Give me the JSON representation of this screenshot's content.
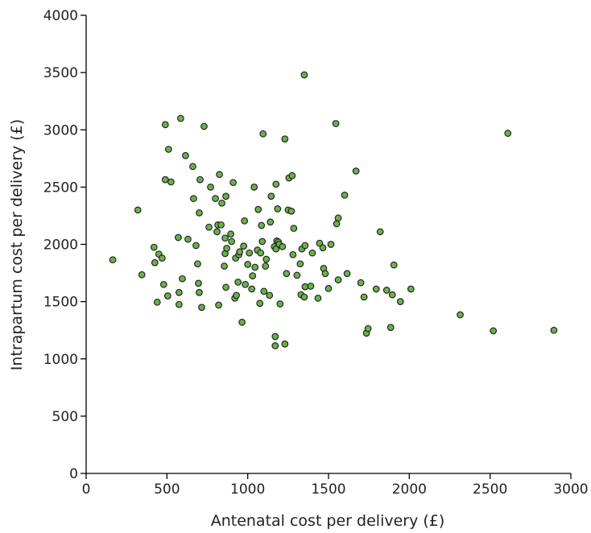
{
  "chart_data": {
    "type": "scatter",
    "title": "",
    "xlabel": "Antenatal cost per delivery (£)",
    "ylabel": "Intrapartum cost per delivery (£)",
    "xlim": [
      0,
      3000
    ],
    "ylim": [
      0,
      4000
    ],
    "xticks": [
      "0",
      "500",
      "1000",
      "1500",
      "2000",
      "2500",
      "3000"
    ],
    "yticks": [
      "0",
      "500",
      "1000",
      "1500",
      "2000",
      "2500",
      "3000",
      "3500",
      "4000"
    ],
    "grid": false,
    "legend": "none",
    "marker_color": "#6ab04c",
    "points": [
      [
        165,
        1865
      ],
      [
        320,
        2300
      ],
      [
        345,
        1735
      ],
      [
        420,
        1975
      ],
      [
        425,
        1840
      ],
      [
        440,
        1495
      ],
      [
        450,
        1915
      ],
      [
        470,
        1880
      ],
      [
        480,
        1650
      ],
      [
        490,
        3045
      ],
      [
        490,
        2565
      ],
      [
        505,
        1550
      ],
      [
        510,
        2830
      ],
      [
        525,
        2545
      ],
      [
        570,
        2060
      ],
      [
        575,
        1580
      ],
      [
        575,
        1475
      ],
      [
        585,
        3100
      ],
      [
        595,
        1700
      ],
      [
        615,
        2775
      ],
      [
        630,
        2045
      ],
      [
        660,
        2680
      ],
      [
        665,
        2400
      ],
      [
        680,
        1990
      ],
      [
        690,
        1830
      ],
      [
        695,
        1660
      ],
      [
        700,
        1580
      ],
      [
        700,
        2275
      ],
      [
        705,
        2565
      ],
      [
        715,
        1450
      ],
      [
        730,
        3030
      ],
      [
        760,
        2150
      ],
      [
        770,
        2500
      ],
      [
        800,
        2400
      ],
      [
        810,
        2110
      ],
      [
        815,
        2170
      ],
      [
        820,
        1470
      ],
      [
        825,
        2610
      ],
      [
        835,
        2170
      ],
      [
        840,
        2360
      ],
      [
        855,
        1810
      ],
      [
        860,
        2055
      ],
      [
        860,
        1920
      ],
      [
        865,
        2420
      ],
      [
        865,
        1625
      ],
      [
        870,
        1965
      ],
      [
        895,
        2090
      ],
      [
        900,
        2025
      ],
      [
        910,
        2540
      ],
      [
        920,
        1530
      ],
      [
        925,
        1880
      ],
      [
        930,
        1555
      ],
      [
        940,
        1670
      ],
      [
        945,
        1910
      ],
      [
        950,
        1935
      ],
      [
        965,
        1320
      ],
      [
        975,
        1985
      ],
      [
        980,
        2205
      ],
      [
        985,
        1650
      ],
      [
        1000,
        1825
      ],
      [
        1010,
        1925
      ],
      [
        1025,
        1610
      ],
      [
        1030,
        1725
      ],
      [
        1040,
        2500
      ],
      [
        1045,
        1800
      ],
      [
        1060,
        1950
      ],
      [
        1065,
        2305
      ],
      [
        1075,
        1485
      ],
      [
        1080,
        1925
      ],
      [
        1085,
        2165
      ],
      [
        1090,
        2025
      ],
      [
        1095,
        2965
      ],
      [
        1100,
        1590
      ],
      [
        1110,
        1810
      ],
      [
        1115,
        1870
      ],
      [
        1135,
        1555
      ],
      [
        1140,
        2195
      ],
      [
        1145,
        2420
      ],
      [
        1165,
        1980
      ],
      [
        1170,
        1115
      ],
      [
        1170,
        1195
      ],
      [
        1175,
        2525
      ],
      [
        1175,
        1960
      ],
      [
        1180,
        2030
      ],
      [
        1185,
        2310
      ],
      [
        1190,
        2020
      ],
      [
        1195,
        2000
      ],
      [
        1200,
        1480
      ],
      [
        1215,
        1980
      ],
      [
        1230,
        2920
      ],
      [
        1230,
        1130
      ],
      [
        1240,
        1745
      ],
      [
        1250,
        2300
      ],
      [
        1255,
        2580
      ],
      [
        1270,
        2290
      ],
      [
        1275,
        2600
      ],
      [
        1280,
        1910
      ],
      [
        1285,
        2140
      ],
      [
        1305,
        1730
      ],
      [
        1325,
        1830
      ],
      [
        1330,
        1560
      ],
      [
        1335,
        1960
      ],
      [
        1350,
        1540
      ],
      [
        1350,
        3480
      ],
      [
        1355,
        1990
      ],
      [
        1355,
        1630
      ],
      [
        1390,
        1635
      ],
      [
        1400,
        1925
      ],
      [
        1435,
        1530
      ],
      [
        1445,
        2010
      ],
      [
        1465,
        1970
      ],
      [
        1470,
        1790
      ],
      [
        1480,
        1745
      ],
      [
        1500,
        1615
      ],
      [
        1515,
        2000
      ],
      [
        1545,
        3055
      ],
      [
        1550,
        2180
      ],
      [
        1560,
        2230
      ],
      [
        1560,
        1690
      ],
      [
        1600,
        2430
      ],
      [
        1615,
        1745
      ],
      [
        1670,
        2640
      ],
      [
        1700,
        1665
      ],
      [
        1720,
        1540
      ],
      [
        1735,
        1225
      ],
      [
        1745,
        1265
      ],
      [
        1795,
        1610
      ],
      [
        1820,
        2110
      ],
      [
        1860,
        1600
      ],
      [
        1885,
        1275
      ],
      [
        1895,
        1560
      ],
      [
        1905,
        1820
      ],
      [
        1945,
        1500
      ],
      [
        2010,
        1610
      ],
      [
        2315,
        1385
      ],
      [
        2520,
        1245
      ],
      [
        2610,
        2970
      ],
      [
        2895,
        1250
      ]
    ]
  }
}
